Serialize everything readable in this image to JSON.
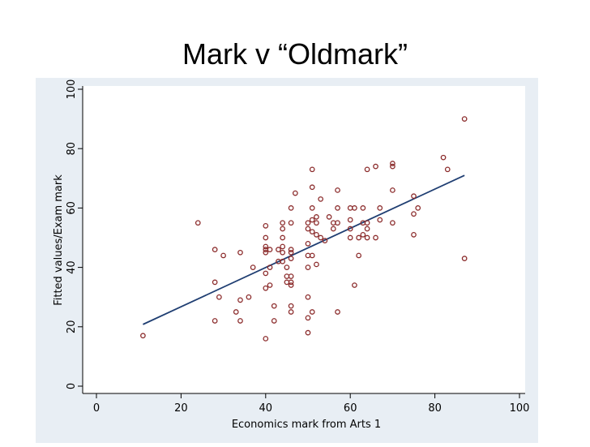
{
  "slide": {
    "title": "Mark v “Oldmark”"
  },
  "chart_data": {
    "type": "scatter",
    "title": "",
    "xlabel": "Economics mark from Arts 1",
    "ylabel": "Fitted values/Exam mark",
    "xlim": [
      0,
      100
    ],
    "ylim": [
      0,
      100
    ],
    "xticks": [
      0,
      20,
      40,
      60,
      80,
      100
    ],
    "yticks": [
      0,
      20,
      40,
      60,
      80,
      100
    ],
    "grid": false,
    "legend": "none",
    "colors": {
      "panel": "#e8eef4",
      "plot": "#ffffff",
      "points": "#8b2b2b",
      "fit_line": "#1f3e72"
    },
    "series": [
      {
        "kind": "scatter",
        "points": [
          [
            11,
            17
          ],
          [
            24,
            55
          ],
          [
            28,
            46
          ],
          [
            28,
            35
          ],
          [
            28,
            22
          ],
          [
            29,
            30
          ],
          [
            30,
            44
          ],
          [
            33,
            25
          ],
          [
            34,
            45
          ],
          [
            34,
            29
          ],
          [
            34,
            22
          ],
          [
            36,
            30
          ],
          [
            37,
            40
          ],
          [
            40,
            54
          ],
          [
            40,
            50
          ],
          [
            40,
            47
          ],
          [
            40,
            46
          ],
          [
            40,
            45
          ],
          [
            40,
            38
          ],
          [
            40,
            33
          ],
          [
            40,
            16
          ],
          [
            41,
            46
          ],
          [
            41,
            40
          ],
          [
            41,
            34
          ],
          [
            42,
            27
          ],
          [
            42,
            22
          ],
          [
            43,
            46
          ],
          [
            43,
            42
          ],
          [
            44,
            55
          ],
          [
            44,
            53
          ],
          [
            44,
            50
          ],
          [
            44,
            47
          ],
          [
            44,
            45
          ],
          [
            44,
            42
          ],
          [
            45,
            40
          ],
          [
            45,
            37
          ],
          [
            45,
            35
          ],
          [
            46,
            60
          ],
          [
            46,
            55
          ],
          [
            46,
            46
          ],
          [
            46,
            45
          ],
          [
            46,
            43
          ],
          [
            46,
            37
          ],
          [
            46,
            35
          ],
          [
            46,
            34
          ],
          [
            46,
            27
          ],
          [
            46,
            25
          ],
          [
            47,
            65
          ],
          [
            50,
            55
          ],
          [
            50,
            53
          ],
          [
            50,
            48
          ],
          [
            50,
            44
          ],
          [
            50,
            40
          ],
          [
            50,
            30
          ],
          [
            50,
            23
          ],
          [
            50,
            18
          ],
          [
            51,
            73
          ],
          [
            51,
            67
          ],
          [
            51,
            60
          ],
          [
            51,
            56
          ],
          [
            51,
            52
          ],
          [
            51,
            44
          ],
          [
            51,
            25
          ],
          [
            52,
            57
          ],
          [
            52,
            55
          ],
          [
            52,
            51
          ],
          [
            52,
            41
          ],
          [
            53,
            63
          ],
          [
            53,
            50
          ],
          [
            54,
            49
          ],
          [
            55,
            57
          ],
          [
            56,
            55
          ],
          [
            56,
            53
          ],
          [
            57,
            66
          ],
          [
            57,
            60
          ],
          [
            57,
            55
          ],
          [
            57,
            25
          ],
          [
            60,
            60
          ],
          [
            60,
            56
          ],
          [
            60,
            53
          ],
          [
            60,
            50
          ],
          [
            61,
            60
          ],
          [
            61,
            34
          ],
          [
            62,
            50
          ],
          [
            62,
            44
          ],
          [
            63,
            60
          ],
          [
            63,
            55
          ],
          [
            63,
            51
          ],
          [
            64,
            73
          ],
          [
            64,
            55
          ],
          [
            64,
            53
          ],
          [
            64,
            50
          ],
          [
            66,
            74
          ],
          [
            66,
            50
          ],
          [
            67,
            60
          ],
          [
            67,
            56
          ],
          [
            70,
            75
          ],
          [
            70,
            74
          ],
          [
            70,
            66
          ],
          [
            70,
            55
          ],
          [
            75,
            64
          ],
          [
            75,
            58
          ],
          [
            75,
            51
          ],
          [
            76,
            60
          ],
          [
            82,
            77
          ],
          [
            83,
            73
          ],
          [
            87,
            90
          ],
          [
            87,
            43
          ]
        ]
      },
      {
        "kind": "line",
        "points": [
          [
            11,
            20.8
          ],
          [
            87,
            71
          ]
        ]
      }
    ]
  }
}
